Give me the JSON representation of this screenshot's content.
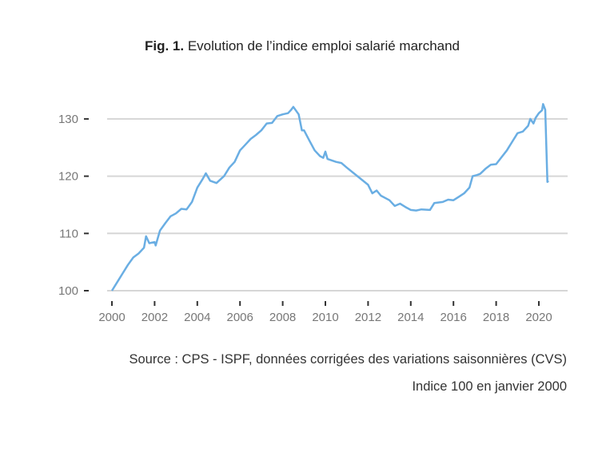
{
  "chart_data": {
    "type": "line",
    "title_prefix": "Fig. 1.",
    "title": "Evolution de l’indice emploi salarié marchand",
    "xlabel": "",
    "ylabel": "",
    "xlim": [
      1999.5,
      2021.3
    ],
    "ylim": [
      100,
      130
    ],
    "x_ticks": [
      "2000",
      "2002",
      "2004",
      "2006",
      "2008",
      "2010",
      "2012",
      "2014",
      "2016",
      "2018",
      "2020"
    ],
    "y_ticks": [
      "100",
      "110",
      "120",
      "130"
    ],
    "grid": "horizontal",
    "line_color": "#6aaee3",
    "series": [
      {
        "x": [
          2000.0,
          2000.25,
          2000.5,
          2000.75,
          2001.0,
          2001.25,
          2001.5,
          2001.6,
          2001.75,
          2002.0,
          2002.05,
          2002.25,
          2002.5,
          2002.75,
          2003.0,
          2003.25,
          2003.5,
          2003.75,
          2004.0,
          2004.25,
          2004.4,
          2004.6,
          2004.9,
          2005.25,
          2005.5,
          2005.75,
          2006.0,
          2006.25,
          2006.5,
          2006.75,
          2007.0,
          2007.25,
          2007.5,
          2007.75,
          2008.0,
          2008.25,
          2008.4,
          2008.5,
          2008.75,
          2008.9,
          2009.0,
          2009.25,
          2009.5,
          2009.75,
          2009.9,
          2010.0,
          2010.1,
          2010.5,
          2010.75,
          2011.0,
          2011.5,
          2012.0,
          2012.2,
          2012.4,
          2012.6,
          2013.0,
          2013.25,
          2013.5,
          2013.8,
          2014.0,
          2014.25,
          2014.5,
          2014.9,
          2015.1,
          2015.5,
          2015.75,
          2016.0,
          2016.25,
          2016.5,
          2016.75,
          2016.9,
          2017.1,
          2017.25,
          2017.5,
          2017.75,
          2018.0,
          2018.25,
          2018.5,
          2018.75,
          2019.0,
          2019.25,
          2019.5,
          2019.6,
          2019.75,
          2019.85,
          2020.0,
          2020.15,
          2020.2,
          2020.3,
          2020.4,
          2020.45
        ],
        "y": [
          100,
          101.5,
          103,
          104.5,
          105.8,
          106.5,
          107.5,
          109.5,
          108.3,
          108.5,
          107.9,
          110.5,
          111.8,
          113,
          113.5,
          114.3,
          114.2,
          115.5,
          118,
          119.5,
          120.5,
          119.2,
          118.8,
          120,
          121.5,
          122.5,
          124.5,
          125.5,
          126.5,
          127.2,
          128,
          129.2,
          129.3,
          130.5,
          130.8,
          131,
          131.6,
          132.1,
          130.8,
          128,
          128,
          126.2,
          124.5,
          123.5,
          123.2,
          124.3,
          123,
          122.5,
          122.3,
          121.5,
          120,
          118.5,
          117,
          117.5,
          116.6,
          115.8,
          114.8,
          115.2,
          114.5,
          114.1,
          114,
          114.2,
          114.1,
          115.3,
          115.5,
          115.9,
          115.8,
          116.4,
          117,
          118,
          120,
          120.2,
          120.4,
          121.3,
          122,
          122.1,
          123.3,
          124.5,
          126,
          127.5,
          127.8,
          128.8,
          130,
          129.2,
          130.2,
          131,
          131.5,
          132.6,
          131.6,
          119,
          119.2
        ]
      }
    ],
    "notes": [
      "Source : CPS - ISPF, données corrigées des variations saisonnières (CVS)",
      "Indice 100 en janvier 2000"
    ]
  }
}
